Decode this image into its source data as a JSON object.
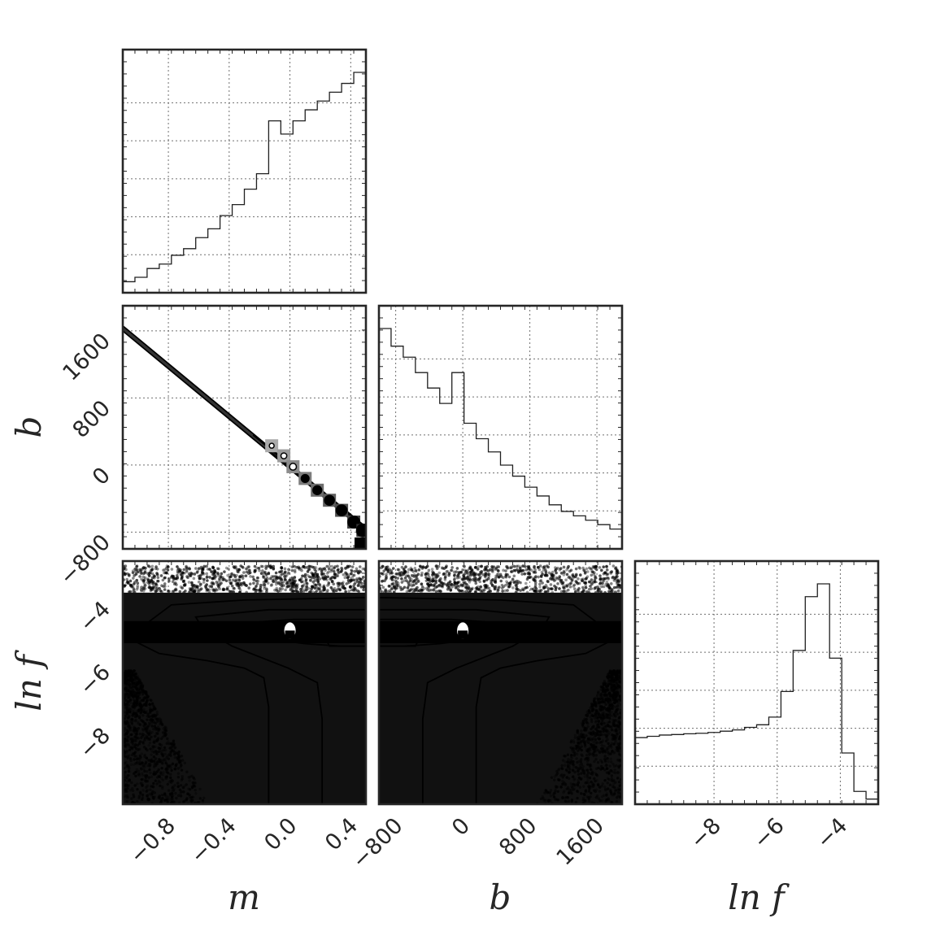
{
  "chart_data": {
    "type": "corner",
    "parameters": [
      "m",
      "b",
      "ln f"
    ],
    "axis_labels": {
      "m": "m",
      "b": "b",
      "lnf": "ln f"
    },
    "ranges": {
      "m": [
        -1.1,
        0.5
      ],
      "b": [
        -1000,
        1900
      ],
      "lnf": [
        -10.5,
        -2.8
      ]
    },
    "ticks": {
      "m": {
        "values": [
          -0.8,
          -0.4,
          0.0,
          0.4
        ],
        "labels": [
          "−0.8",
          "−0.4",
          "0.0",
          "0.4"
        ]
      },
      "b": {
        "values": [
          -800,
          0,
          800,
          1600
        ],
        "labels": [
          "−800",
          "0",
          "800",
          "1600"
        ]
      },
      "lnf": {
        "values": [
          -8,
          -6,
          -4
        ],
        "labels": [
          "−8",
          "−6",
          "−4"
        ]
      }
    },
    "grid": true,
    "histograms": {
      "m": {
        "bin_edges": [
          -1.1,
          -1.02,
          -0.94,
          -0.86,
          -0.78,
          -0.7,
          -0.62,
          -0.54,
          -0.46,
          -0.38,
          -0.3,
          -0.22,
          -0.14,
          -0.06,
          0.02,
          0.1,
          0.18,
          0.26,
          0.34,
          0.42,
          0.5
        ],
        "counts": [
          0.05,
          0.07,
          0.11,
          0.13,
          0.17,
          0.2,
          0.25,
          0.29,
          0.35,
          0.4,
          0.47,
          0.54,
          0.78,
          0.72,
          0.78,
          0.83,
          0.87,
          0.91,
          0.95,
          1.0
        ]
      },
      "b": {
        "bin_edges": [
          -1000,
          -855,
          -710,
          -565,
          -420,
          -275,
          -130,
          15,
          160,
          305,
          450,
          595,
          740,
          885,
          1030,
          1175,
          1320,
          1465,
          1610,
          1755,
          1900
        ],
        "counts": [
          1.0,
          0.92,
          0.87,
          0.8,
          0.73,
          0.66,
          0.8,
          0.57,
          0.5,
          0.44,
          0.38,
          0.33,
          0.28,
          0.24,
          0.2,
          0.17,
          0.15,
          0.13,
          0.11,
          0.09
        ]
      },
      "lnf": {
        "bin_edges": [
          -10.5,
          -10.115,
          -9.73,
          -9.345,
          -8.96,
          -8.575,
          -8.19,
          -7.805,
          -7.42,
          -7.035,
          -6.65,
          -6.265,
          -5.88,
          -5.495,
          -5.11,
          -4.725,
          -4.34,
          -3.955,
          -3.57,
          -3.185,
          -2.8
        ],
        "counts": [
          0.26,
          0.265,
          0.27,
          0.272,
          0.275,
          0.277,
          0.28,
          0.285,
          0.29,
          0.3,
          0.31,
          0.34,
          0.44,
          0.6,
          0.81,
          0.86,
          0.57,
          0.2,
          0.05,
          0.02
        ]
      }
    },
    "joint_m_b": {
      "relation": "b = -1500 * m - 20",
      "samples": [
        {
          "m": -0.12,
          "b": 230
        },
        {
          "m": -0.04,
          "b": 110
        },
        {
          "m": 0.02,
          "b": -20
        },
        {
          "m": 0.1,
          "b": -160
        },
        {
          "m": 0.18,
          "b": -300
        },
        {
          "m": 0.26,
          "b": -420
        },
        {
          "m": 0.34,
          "b": -540
        },
        {
          "m": 0.42,
          "b": -680
        },
        {
          "m": 0.48,
          "b": -780
        }
      ]
    },
    "joint_lnf": {
      "peak_lnf": -5.0,
      "peak_m": 0.0,
      "peak_b": 0
    }
  }
}
